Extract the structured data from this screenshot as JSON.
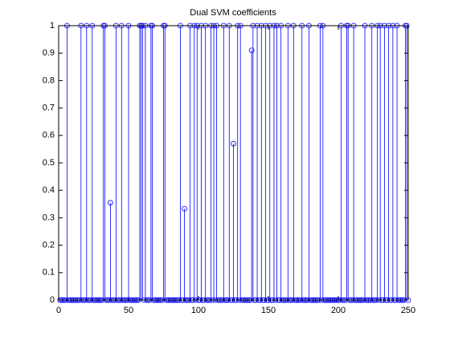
{
  "chart_data": {
    "type": "stem",
    "title": "Dual SVM coefficients",
    "values": [
      0,
      0,
      0,
      0,
      0,
      1,
      0,
      0,
      0,
      0,
      0,
      0,
      0,
      0,
      0,
      1,
      0,
      0,
      0,
      1,
      0,
      0,
      0,
      1,
      0,
      0,
      0,
      0,
      0,
      0,
      0,
      1,
      1,
      0,
      0,
      0,
      0.355,
      0,
      0,
      0,
      1,
      0,
      0,
      0,
      1,
      0,
      0,
      0,
      0,
      1,
      0,
      0,
      0,
      0,
      0,
      0,
      0,
      1,
      1,
      1,
      0,
      1,
      0,
      0,
      0,
      1,
      1,
      0,
      0,
      0,
      0,
      0,
      0,
      0,
      1,
      1,
      0,
      0,
      0,
      0,
      0,
      0,
      0,
      0,
      0,
      0,
      1,
      0,
      0,
      0.333,
      0,
      0,
      0,
      1,
      0,
      0,
      1,
      0,
      1,
      0,
      0,
      1,
      0,
      0,
      1,
      0,
      0,
      0,
      1,
      0,
      1,
      0,
      1,
      0,
      0,
      0,
      0,
      1,
      0,
      0,
      0,
      1,
      0,
      0,
      0.57,
      0,
      0,
      1,
      0,
      1,
      0,
      0,
      0,
      0,
      0,
      0,
      0,
      0.91,
      1,
      0,
      0,
      1,
      0,
      0,
      1,
      0,
      0,
      1,
      0,
      0,
      1,
      0,
      0,
      1,
      0,
      1,
      0,
      0,
      1,
      0,
      0,
      0,
      0,
      1,
      0,
      0,
      0,
      1,
      0,
      0,
      0,
      0,
      0,
      1,
      0,
      0,
      0,
      0,
      1,
      0,
      0,
      0,
      0,
      0,
      0,
      0,
      1,
      0,
      1,
      0,
      0,
      0,
      0,
      0,
      0,
      0,
      0,
      0,
      0,
      0,
      0,
      1,
      0,
      0,
      0,
      1,
      1,
      0,
      0,
      0,
      1,
      0,
      0,
      0,
      0,
      0,
      0,
      0,
      1,
      0,
      0,
      0,
      0,
      1,
      0,
      0,
      0,
      1,
      0,
      1,
      0,
      0,
      1,
      0,
      0,
      1,
      0,
      0,
      1,
      0,
      0,
      1,
      0,
      0,
      0,
      0,
      0,
      1,
      1,
      0
    ],
    "color": "#0000ff",
    "xlim": [
      0,
      250
    ],
    "xticks": [
      0,
      50,
      100,
      150,
      200,
      250
    ],
    "ylim": [
      0,
      1
    ],
    "yticks": [
      0,
      0.1,
      0.2,
      0.3,
      0.4,
      0.5,
      0.6,
      0.7,
      0.8,
      0.9,
      1
    ]
  }
}
